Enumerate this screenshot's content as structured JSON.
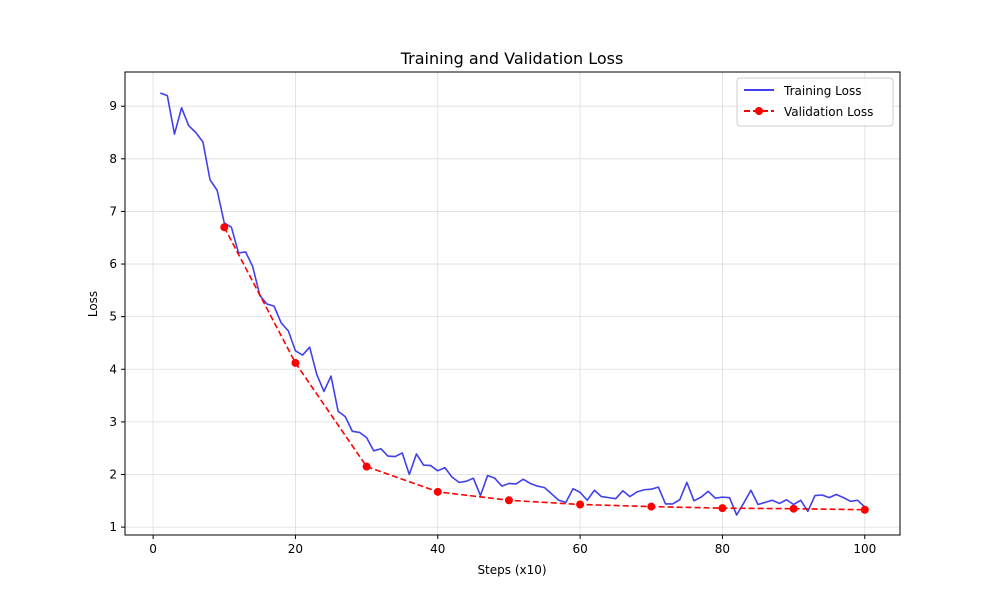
{
  "chart_data": {
    "type": "line",
    "title": "Training and Validation Loss",
    "xlabel": "Steps (x10)",
    "ylabel": "Loss",
    "xlim": [
      -3.95,
      104.95
    ],
    "ylim": [
      0.85,
      9.65
    ],
    "xticks": [
      0,
      20,
      40,
      60,
      80,
      100
    ],
    "yticks": [
      1,
      2,
      3,
      4,
      5,
      6,
      7,
      8,
      9
    ],
    "grid": true,
    "legend_position": "top-right",
    "series": [
      {
        "name": "Training Loss",
        "color": "#4040ee",
        "style": "solid",
        "marker": "none",
        "x": [
          1,
          2,
          3,
          4,
          5,
          6,
          7,
          8,
          9,
          10,
          11,
          12,
          13,
          14,
          15,
          16,
          17,
          18,
          19,
          20,
          21,
          22,
          23,
          24,
          25,
          26,
          27,
          28,
          29,
          30,
          31,
          32,
          33,
          34,
          35,
          36,
          37,
          38,
          39,
          40,
          41,
          42,
          43,
          44,
          45,
          46,
          47,
          48,
          49,
          50,
          51,
          52,
          53,
          54,
          55,
          56,
          57,
          58,
          59,
          60,
          61,
          62,
          63,
          64,
          65,
          66,
          67,
          68,
          69,
          70,
          71,
          72,
          73,
          74,
          75,
          76,
          77,
          78,
          79,
          80,
          81,
          82,
          83,
          84,
          85,
          86,
          87,
          88,
          89,
          90,
          91,
          92,
          93,
          94,
          95,
          96,
          97,
          98,
          99,
          100
        ],
        "values": [
          9.25,
          9.2,
          8.47,
          8.97,
          8.63,
          8.5,
          8.32,
          7.6,
          7.4,
          6.78,
          6.7,
          6.21,
          6.23,
          5.95,
          5.4,
          5.24,
          5.2,
          4.88,
          4.73,
          4.35,
          4.27,
          4.42,
          3.9,
          3.58,
          3.87,
          3.2,
          3.1,
          2.82,
          2.8,
          2.7,
          2.45,
          2.49,
          2.35,
          2.34,
          2.41,
          2.0,
          2.39,
          2.18,
          2.17,
          2.07,
          2.13,
          1.95,
          1.85,
          1.87,
          1.93,
          1.6,
          1.98,
          1.93,
          1.78,
          1.83,
          1.82,
          1.91,
          1.83,
          1.78,
          1.75,
          1.63,
          1.51,
          1.47,
          1.73,
          1.66,
          1.51,
          1.7,
          1.58,
          1.56,
          1.54,
          1.69,
          1.58,
          1.67,
          1.71,
          1.72,
          1.76,
          1.44,
          1.44,
          1.52,
          1.85,
          1.5,
          1.57,
          1.68,
          1.55,
          1.57,
          1.56,
          1.23,
          1.46,
          1.7,
          1.43,
          1.47,
          1.51,
          1.45,
          1.52,
          1.43,
          1.51,
          1.3,
          1.6,
          1.61,
          1.56,
          1.62,
          1.56,
          1.49,
          1.51,
          1.38
        ]
      },
      {
        "name": "Validation Loss",
        "color": "#ff0000",
        "style": "dashed",
        "marker": "circle",
        "x": [
          10,
          20,
          30,
          40,
          50,
          60,
          70,
          80,
          90,
          100
        ],
        "values": [
          6.7,
          4.12,
          2.15,
          1.67,
          1.51,
          1.43,
          1.39,
          1.36,
          1.35,
          1.33
        ]
      }
    ]
  }
}
